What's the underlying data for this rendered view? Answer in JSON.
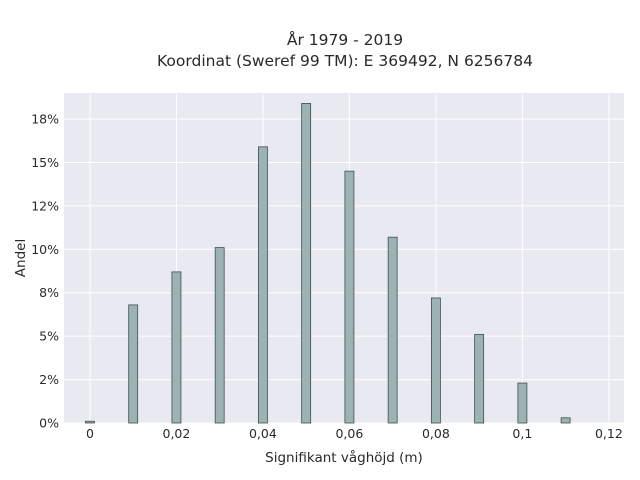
{
  "chart_data": {
    "type": "bar",
    "title_line1": "År 1979 - 2019",
    "title_line2": "Koordinat (Sweref 99 TM): E 369492, N 6256784",
    "xlabel": "Signifikant våghöjd (m)",
    "ylabel": "Andel",
    "xlim": [
      -0.006,
      0.1235
    ],
    "ylim": [
      0,
      19.0
    ],
    "x_ticks": [
      0,
      0.02,
      0.04,
      0.06,
      0.08,
      0.1,
      0.12
    ],
    "x_tick_labels": [
      "0",
      "0,02",
      "0,04",
      "0,06",
      "0,08",
      "0,1",
      "0,12"
    ],
    "y_ticks": [
      0,
      2.5,
      5,
      7.5,
      10,
      12.5,
      15,
      17.5
    ],
    "y_tick_labels": [
      "0%",
      "2%",
      "5%",
      "8%",
      "10%",
      "12%",
      "15%",
      "18%"
    ],
    "grid": true,
    "bar_color": "#9db3b3",
    "bar_edge_color": "#3d4f4f",
    "background_color": "#e9e9f1",
    "x": [
      0.0,
      0.01,
      0.02,
      0.03,
      0.04,
      0.05,
      0.06,
      0.07,
      0.08,
      0.09,
      0.1,
      0.11
    ],
    "values": [
      0.1,
      6.8,
      8.7,
      10.1,
      15.9,
      18.4,
      14.5,
      10.7,
      7.2,
      5.1,
      2.3,
      0.3
    ]
  }
}
